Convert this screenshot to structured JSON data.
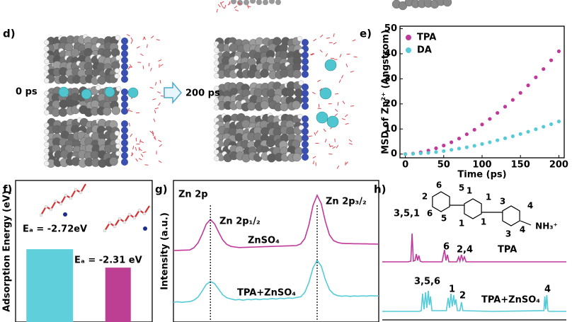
{
  "figure": {
    "panel_labels": [
      "d)",
      "e)",
      "f)",
      "g)",
      "h)"
    ],
    "snapshot_times": [
      "0 ps",
      "200 ps"
    ]
  },
  "chart_data": [
    {
      "type": "scatter",
      "xlabel": "Time (ps)",
      "ylabel": "MSD of Zn²⁺ (Angstrom)",
      "x": [
        0,
        10,
        20,
        30,
        40,
        50,
        60,
        70,
        80,
        90,
        100,
        110,
        120,
        130,
        140,
        150,
        160,
        170,
        180,
        190,
        200
      ],
      "series": [
        {
          "name": "TPA",
          "color": "#c0399a",
          "values": [
            0,
            0.2,
            0.7,
            1.4,
            2.3,
            3.4,
            4.7,
            6.2,
            7.9,
            9.7,
            11.8,
            14.0,
            16.4,
            18.9,
            21.6,
            24.4,
            27.4,
            30.6,
            33.9,
            37.4,
            41.0
          ]
        },
        {
          "name": "DA",
          "color": "#56cbd8",
          "values": [
            0,
            0.1,
            0.3,
            0.5,
            0.8,
            1.2,
            1.7,
            2.2,
            2.7,
            3.3,
            4.0,
            4.7,
            5.5,
            6.3,
            7.1,
            8.0,
            8.9,
            9.9,
            10.9,
            11.9,
            13.0
          ]
        }
      ],
      "xlim": [
        -7,
        207
      ],
      "ylim": [
        -1.5,
        51
      ],
      "xticks": [
        0,
        50,
        100,
        150,
        200
      ],
      "yticks": [
        0,
        10,
        20,
        30,
        40,
        50
      ],
      "legend": "upper left"
    },
    {
      "type": "bar",
      "ylabel": "Adsorption Energy (eV)",
      "categories": [
        null,
        null
      ],
      "values": [
        -2.72,
        -2.31
      ],
      "value_labels": [
        "Eₐ = -2.72eV",
        "Eₐ = -2.31 eV"
      ],
      "colors": [
        "#5ecfdb",
        "#bd3f93"
      ],
      "ylim": [
        -1.1,
        -4.25
      ]
    },
    {
      "type": "line",
      "ylabel": "Intensity (a.u.)",
      "annotations": [
        "Zn 2p",
        "Zn 2p₁/₂",
        "Zn 2p₃/₂",
        "ZnSO₄",
        "TPA+ZnSO₄"
      ],
      "reference_lines": [
        18,
        70
      ],
      "x": [
        0,
        2,
        4,
        6,
        8,
        10,
        12,
        14,
        16,
        18,
        20,
        22,
        24,
        26,
        28,
        30,
        32,
        34,
        36,
        38,
        40,
        42,
        44,
        46,
        48,
        50,
        52,
        54,
        56,
        58,
        60,
        62,
        64,
        66,
        68,
        70,
        72,
        74,
        76,
        78,
        80,
        82,
        84,
        86,
        88,
        90,
        92,
        94,
        96,
        98,
        100
      ],
      "series": [
        {
          "color": "#c0399a",
          "values": [
            50.5,
            50.6,
            50.7,
            50.8,
            50.9,
            52.5,
            55.9,
            62.1,
            69.2,
            72.4,
            69.4,
            63.5,
            58.0,
            54.8,
            53.4,
            53.0,
            52.6,
            52.7,
            52.8,
            52.9,
            53.0,
            53.1,
            53.2,
            53.3,
            53.4,
            53.5,
            53.6,
            53.7,
            53.8,
            53.9,
            54.0,
            55.2,
            59.0,
            68.7,
            82.4,
            89.5,
            83.6,
            71.1,
            61.5,
            57.5,
            56.2,
            55.6,
            55.4,
            55.4,
            55.3,
            55.3,
            55.2,
            55.2,
            55.1,
            55.1,
            55.0
          ]
        },
        {
          "color": "#56cbd8",
          "values": [
            14.0,
            14.3,
            13.9,
            14.2,
            14.4,
            15.5,
            17.6,
            21.9,
            26.6,
            28.6,
            27.2,
            23.2,
            19.2,
            17.1,
            16.3,
            15.6,
            15.9,
            15.4,
            16.0,
            15.7,
            16.2,
            15.8,
            16.3,
            16.1,
            16.6,
            16.2,
            16.8,
            16.5,
            17.0,
            16.7,
            17.3,
            17.8,
            20.9,
            28.0,
            38.3,
            43.6,
            39.5,
            30.0,
            22.9,
            19.8,
            18.6,
            18.2,
            18.5,
            18.1,
            18.4,
            18.2,
            18.5,
            18.3,
            18.6,
            18.4,
            18.5
          ]
        }
      ],
      "xlim": [
        0,
        100
      ],
      "ylim": [
        0,
        100
      ]
    },
    {
      "type": "line",
      "annotations": [
        "3,5,1",
        "6",
        "2,4",
        "TPA",
        "3,5,6",
        "1",
        "2",
        "TPA+ZnSO₄",
        "4"
      ],
      "structure_labels": [
        "6",
        "5",
        "2",
        "6",
        "5",
        "1",
        "1",
        "1",
        "1",
        "3",
        "4",
        "3",
        "4",
        "NH₃⁺"
      ],
      "series": [
        {
          "color": "#c0399a",
          "x": [
            0,
            14,
            15.5,
            16.2,
            16.9,
            17.8,
            18.5,
            19.2,
            19.9,
            20.6,
            21.5,
            32.5,
            33.8,
            34.6,
            35.4,
            36.2,
            40.5,
            41.5,
            42.2,
            43,
            43.8,
            44.6,
            45.5,
            60,
            100
          ],
          "values": [
            42.5,
            42.5,
            43,
            62.5,
            43,
            43.5,
            48,
            43.5,
            47,
            43,
            42.5,
            42.5,
            51,
            43.5,
            47.5,
            42.5,
            42.5,
            46,
            43,
            47.5,
            43.5,
            46,
            42.5,
            42.5,
            42.5
          ]
        },
        {
          "color": "#56cbd8",
          "x": [
            0,
            20,
            21.2,
            21.9,
            22.7,
            23.5,
            24.2,
            25,
            25.6,
            26.2,
            27,
            34.8,
            35.8,
            36.5,
            37.3,
            38,
            38.8,
            39.4,
            40,
            40.8,
            42.2,
            43,
            43.8,
            60,
            87.8,
            88.3,
            88.8,
            89.4,
            90,
            90.6,
            100
          ],
          "values": [
            7.5,
            7.5,
            8,
            20,
            9,
            21,
            10,
            22,
            12,
            18,
            8,
            8,
            17,
            10,
            20,
            11,
            19,
            12,
            16,
            8,
            8,
            14,
            8,
            7.5,
            8,
            18,
            9,
            19,
            8,
            7.5,
            7.5
          ]
        }
      ],
      "xlim": [
        0,
        100
      ],
      "ylim": [
        0,
        100
      ]
    }
  ]
}
